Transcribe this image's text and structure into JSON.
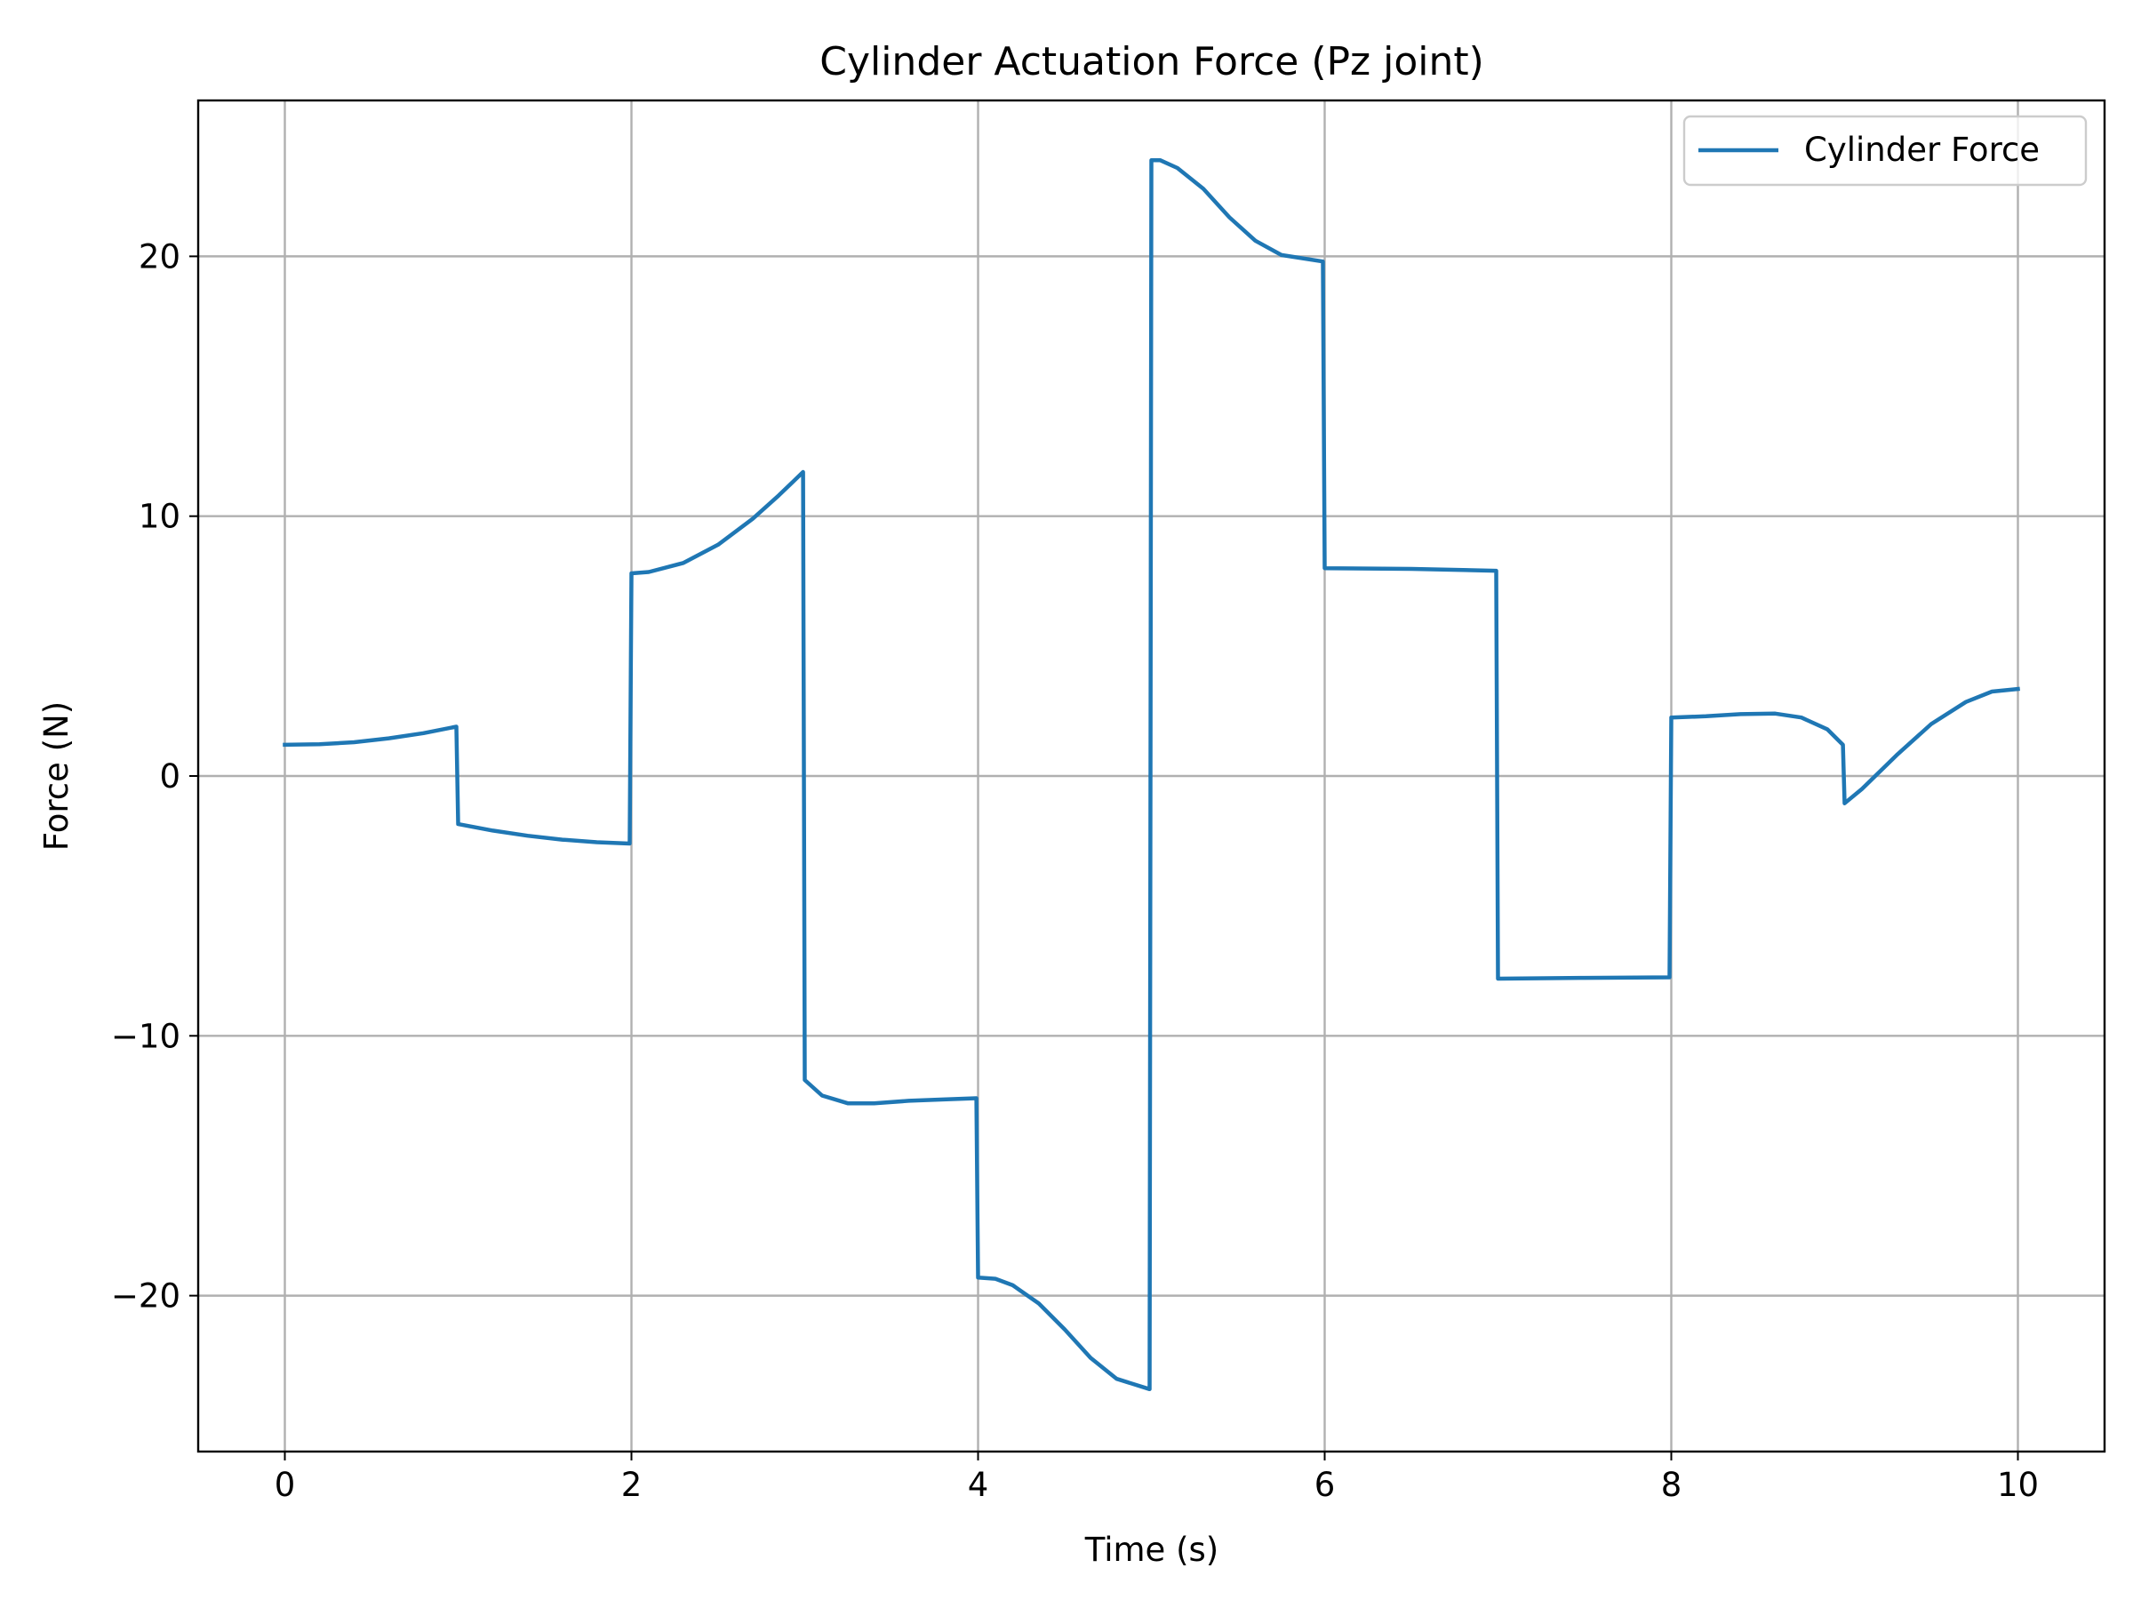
{
  "chart_data": {
    "type": "line",
    "title": "Cylinder Actuation Force (Pz joint)",
    "xlabel": "Time (s)",
    "ylabel": "Force (N)",
    "xlim": [
      -0.5,
      10.5
    ],
    "ylim": [
      -26,
      26
    ],
    "xticks": [
      0,
      2,
      4,
      6,
      8,
      10
    ],
    "yticks": [
      -20,
      -10,
      0,
      10,
      20
    ],
    "xtick_labels": [
      "0",
      "2",
      "4",
      "6",
      "8",
      "10"
    ],
    "ytick_labels": [
      "−20",
      "−10",
      "0",
      "10",
      "20"
    ],
    "grid": true,
    "legend_position": "top-right",
    "series": [
      {
        "name": "Cylinder Force",
        "color": "#1f77b4",
        "points": [
          [
            0.0,
            1.2
          ],
          [
            0.2,
            1.22
          ],
          [
            0.4,
            1.3
          ],
          [
            0.6,
            1.45
          ],
          [
            0.8,
            1.65
          ],
          [
            0.99,
            1.9
          ],
          [
            1.0,
            -1.85
          ],
          [
            1.2,
            -2.1
          ],
          [
            1.4,
            -2.3
          ],
          [
            1.6,
            -2.45
          ],
          [
            1.8,
            -2.55
          ],
          [
            1.99,
            -2.6
          ],
          [
            2.0,
            7.8
          ],
          [
            2.1,
            7.85
          ],
          [
            2.3,
            8.2
          ],
          [
            2.5,
            8.9
          ],
          [
            2.7,
            9.9
          ],
          [
            2.85,
            10.8
          ],
          [
            2.99,
            11.7
          ],
          [
            3.0,
            -11.7
          ],
          [
            3.1,
            -12.3
          ],
          [
            3.25,
            -12.6
          ],
          [
            3.4,
            -12.6
          ],
          [
            3.6,
            -12.5
          ],
          [
            3.8,
            -12.45
          ],
          [
            3.99,
            -12.4
          ],
          [
            4.0,
            -19.3
          ],
          [
            4.1,
            -19.35
          ],
          [
            4.2,
            -19.6
          ],
          [
            4.35,
            -20.3
          ],
          [
            4.5,
            -21.3
          ],
          [
            4.65,
            -22.4
          ],
          [
            4.8,
            -23.2
          ],
          [
            4.99,
            -23.6
          ],
          [
            5.0,
            23.7
          ],
          [
            5.05,
            23.7
          ],
          [
            5.15,
            23.4
          ],
          [
            5.3,
            22.6
          ],
          [
            5.45,
            21.5
          ],
          [
            5.6,
            20.6
          ],
          [
            5.75,
            20.05
          ],
          [
            5.99,
            19.8
          ],
          [
            6.0,
            8.0
          ],
          [
            6.5,
            7.97
          ],
          [
            6.99,
            7.9
          ],
          [
            7.0,
            -7.8
          ],
          [
            7.5,
            -7.77
          ],
          [
            7.99,
            -7.75
          ],
          [
            8.0,
            2.25
          ],
          [
            8.2,
            2.3
          ],
          [
            8.4,
            2.38
          ],
          [
            8.6,
            2.4
          ],
          [
            8.75,
            2.25
          ],
          [
            8.9,
            1.8
          ],
          [
            8.99,
            1.2
          ],
          [
            9.0,
            -1.05
          ],
          [
            9.1,
            -0.5
          ],
          [
            9.3,
            0.8
          ],
          [
            9.5,
            2.0
          ],
          [
            9.7,
            2.85
          ],
          [
            9.85,
            3.25
          ],
          [
            10.0,
            3.35
          ]
        ]
      }
    ]
  }
}
